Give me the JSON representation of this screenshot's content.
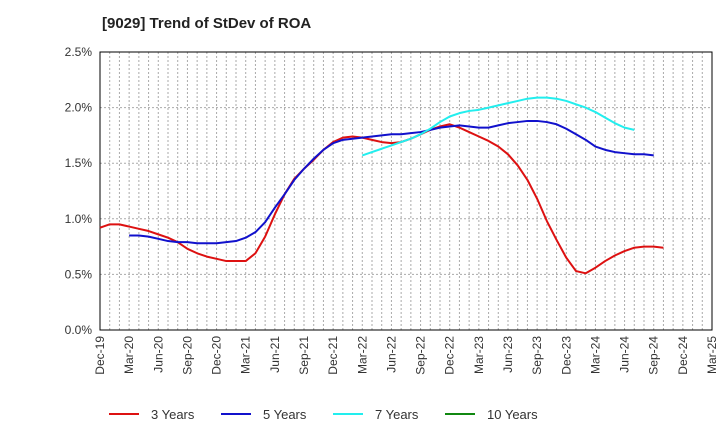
{
  "chart_data": {
    "type": "line",
    "title": "[9029]  Trend of StDev of ROA",
    "xlabel": "",
    "ylabel": "",
    "ylim": [
      0,
      2.5
    ],
    "y_ticks": [
      "0.0%",
      "0.5%",
      "1.0%",
      "1.5%",
      "2.0%",
      "2.5%"
    ],
    "x_ticks": [
      "Dec-19",
      "Mar-20",
      "Jun-20",
      "Sep-20",
      "Dec-20",
      "Mar-21",
      "Jun-21",
      "Sep-21",
      "Dec-21",
      "Mar-22",
      "Jun-22",
      "Sep-22",
      "Dec-22",
      "Mar-23",
      "Jun-23",
      "Sep-23",
      "Dec-23",
      "Mar-24",
      "Jun-24",
      "Sep-24",
      "Dec-24",
      "Mar-25"
    ],
    "grid": true,
    "legend_position": "bottom",
    "series": [
      {
        "name": "3 Years",
        "color": "#dd1111",
        "start_month_index": 0,
        "values": [
          0.92,
          0.95,
          0.95,
          0.93,
          0.91,
          0.89,
          0.86,
          0.83,
          0.79,
          0.73,
          0.69,
          0.66,
          0.64,
          0.62,
          0.62,
          0.62,
          0.69,
          0.84,
          1.04,
          1.22,
          1.36,
          1.45,
          1.53,
          1.62,
          1.69,
          1.73,
          1.74,
          1.73,
          1.71,
          1.69,
          1.68,
          1.69,
          1.72,
          1.76,
          1.8,
          1.83,
          1.85,
          1.82,
          1.78,
          1.74,
          1.7,
          1.65,
          1.58,
          1.48,
          1.35,
          1.18,
          0.98,
          0.81,
          0.65,
          0.53,
          0.51,
          0.56,
          0.62,
          0.67,
          0.71,
          0.74,
          0.75,
          0.75,
          0.74
        ]
      },
      {
        "name": "5 Years",
        "color": "#1111cc",
        "start_month_index": 3,
        "values": [
          0.85,
          0.85,
          0.84,
          0.82,
          0.8,
          0.79,
          0.79,
          0.78,
          0.78,
          0.78,
          0.79,
          0.8,
          0.83,
          0.88,
          0.97,
          1.1,
          1.22,
          1.35,
          1.45,
          1.54,
          1.62,
          1.68,
          1.71,
          1.72,
          1.73,
          1.74,
          1.75,
          1.76,
          1.76,
          1.77,
          1.78,
          1.8,
          1.82,
          1.83,
          1.84,
          1.83,
          1.82,
          1.82,
          1.84,
          1.86,
          1.87,
          1.88,
          1.88,
          1.87,
          1.85,
          1.81,
          1.76,
          1.71,
          1.65,
          1.62,
          1.6,
          1.59,
          1.58,
          1.58,
          1.57
        ]
      },
      {
        "name": "7 Years",
        "color": "#22eeee",
        "start_month_index": 27,
        "values": [
          1.57,
          1.6,
          1.63,
          1.66,
          1.69,
          1.72,
          1.76,
          1.81,
          1.87,
          1.92,
          1.95,
          1.97,
          1.98,
          2.0,
          2.02,
          2.04,
          2.06,
          2.08,
          2.09,
          2.09,
          2.08,
          2.06,
          2.03,
          2.0,
          1.96,
          1.91,
          1.86,
          1.82,
          1.8
        ]
      },
      {
        "name": "10 Years",
        "color": "#118811",
        "start_month_index": 0,
        "values": []
      }
    ]
  }
}
